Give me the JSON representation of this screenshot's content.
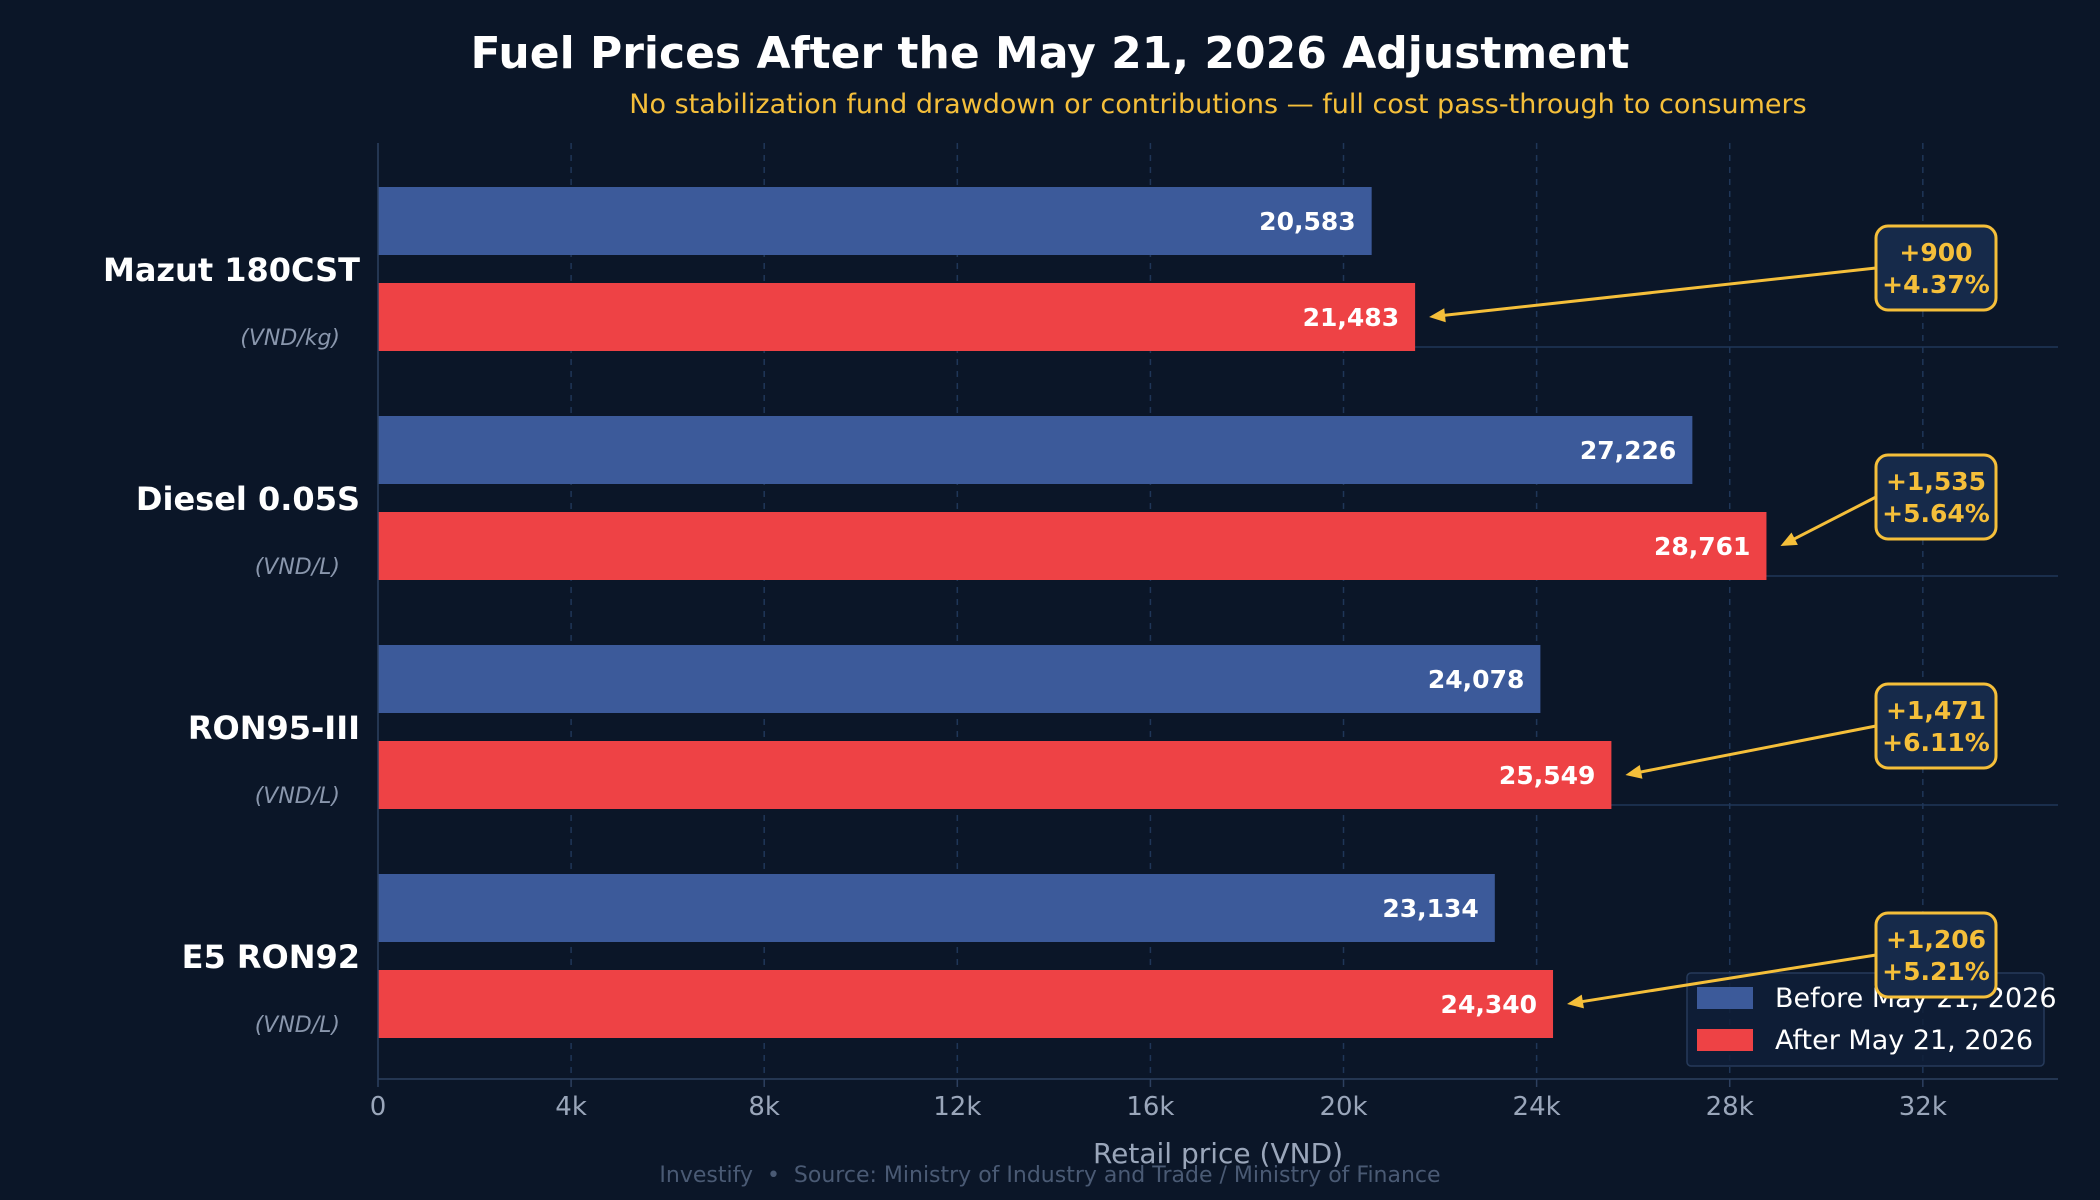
{
  "chart_data": {
    "type": "bar",
    "orientation": "horizontal",
    "title": "Fuel Prices After the May 21, 2026 Adjustment",
    "subtitle": "No stabilization fund drawdown or contributions — full cost pass-through to consumers",
    "xlabel": "Retail price (VND)",
    "ylabel": "",
    "xlim": [
      0,
      34800
    ],
    "xticks": [
      0,
      4000,
      8000,
      12000,
      16000,
      20000,
      24000,
      28000,
      32000
    ],
    "xtick_labels": [
      "0",
      "4k",
      "8k",
      "12k",
      "16k",
      "20k",
      "24k",
      "28k",
      "32k"
    ],
    "grid": "vertical dashed",
    "legend_position": "bottom-right",
    "categories": [
      "Mazut 180CST",
      "Diesel 0.05S",
      "RON95-III",
      "E5 RON92"
    ],
    "units": [
      "(VND/kg)",
      "(VND/L)",
      "(VND/L)",
      "(VND/L)"
    ],
    "series": [
      {
        "name": "Before May 21, 2026",
        "color": "#3c5a9a",
        "values": [
          20583,
          27226,
          24078,
          23134
        ],
        "labels": [
          "20,583",
          "27,226",
          "24,078",
          "23,134"
        ]
      },
      {
        "name": "After May 21, 2026",
        "color": "#ee4245",
        "values": [
          21483,
          28761,
          25549,
          24340
        ],
        "labels": [
          "21,483",
          "28,761",
          "25,549",
          "24,340"
        ]
      }
    ],
    "annotations": [
      {
        "change": "+900",
        "percent": "+4.37%"
      },
      {
        "change": "+1,535",
        "percent": "+5.64%"
      },
      {
        "change": "+1,471",
        "percent": "+6.11%"
      },
      {
        "change": "+1,206",
        "percent": "+5.21%"
      }
    ],
    "annotation_color": "#f5bf3a",
    "footer": "Investify  •  Source: Ministry of Industry and Trade / Ministry of Finance"
  }
}
